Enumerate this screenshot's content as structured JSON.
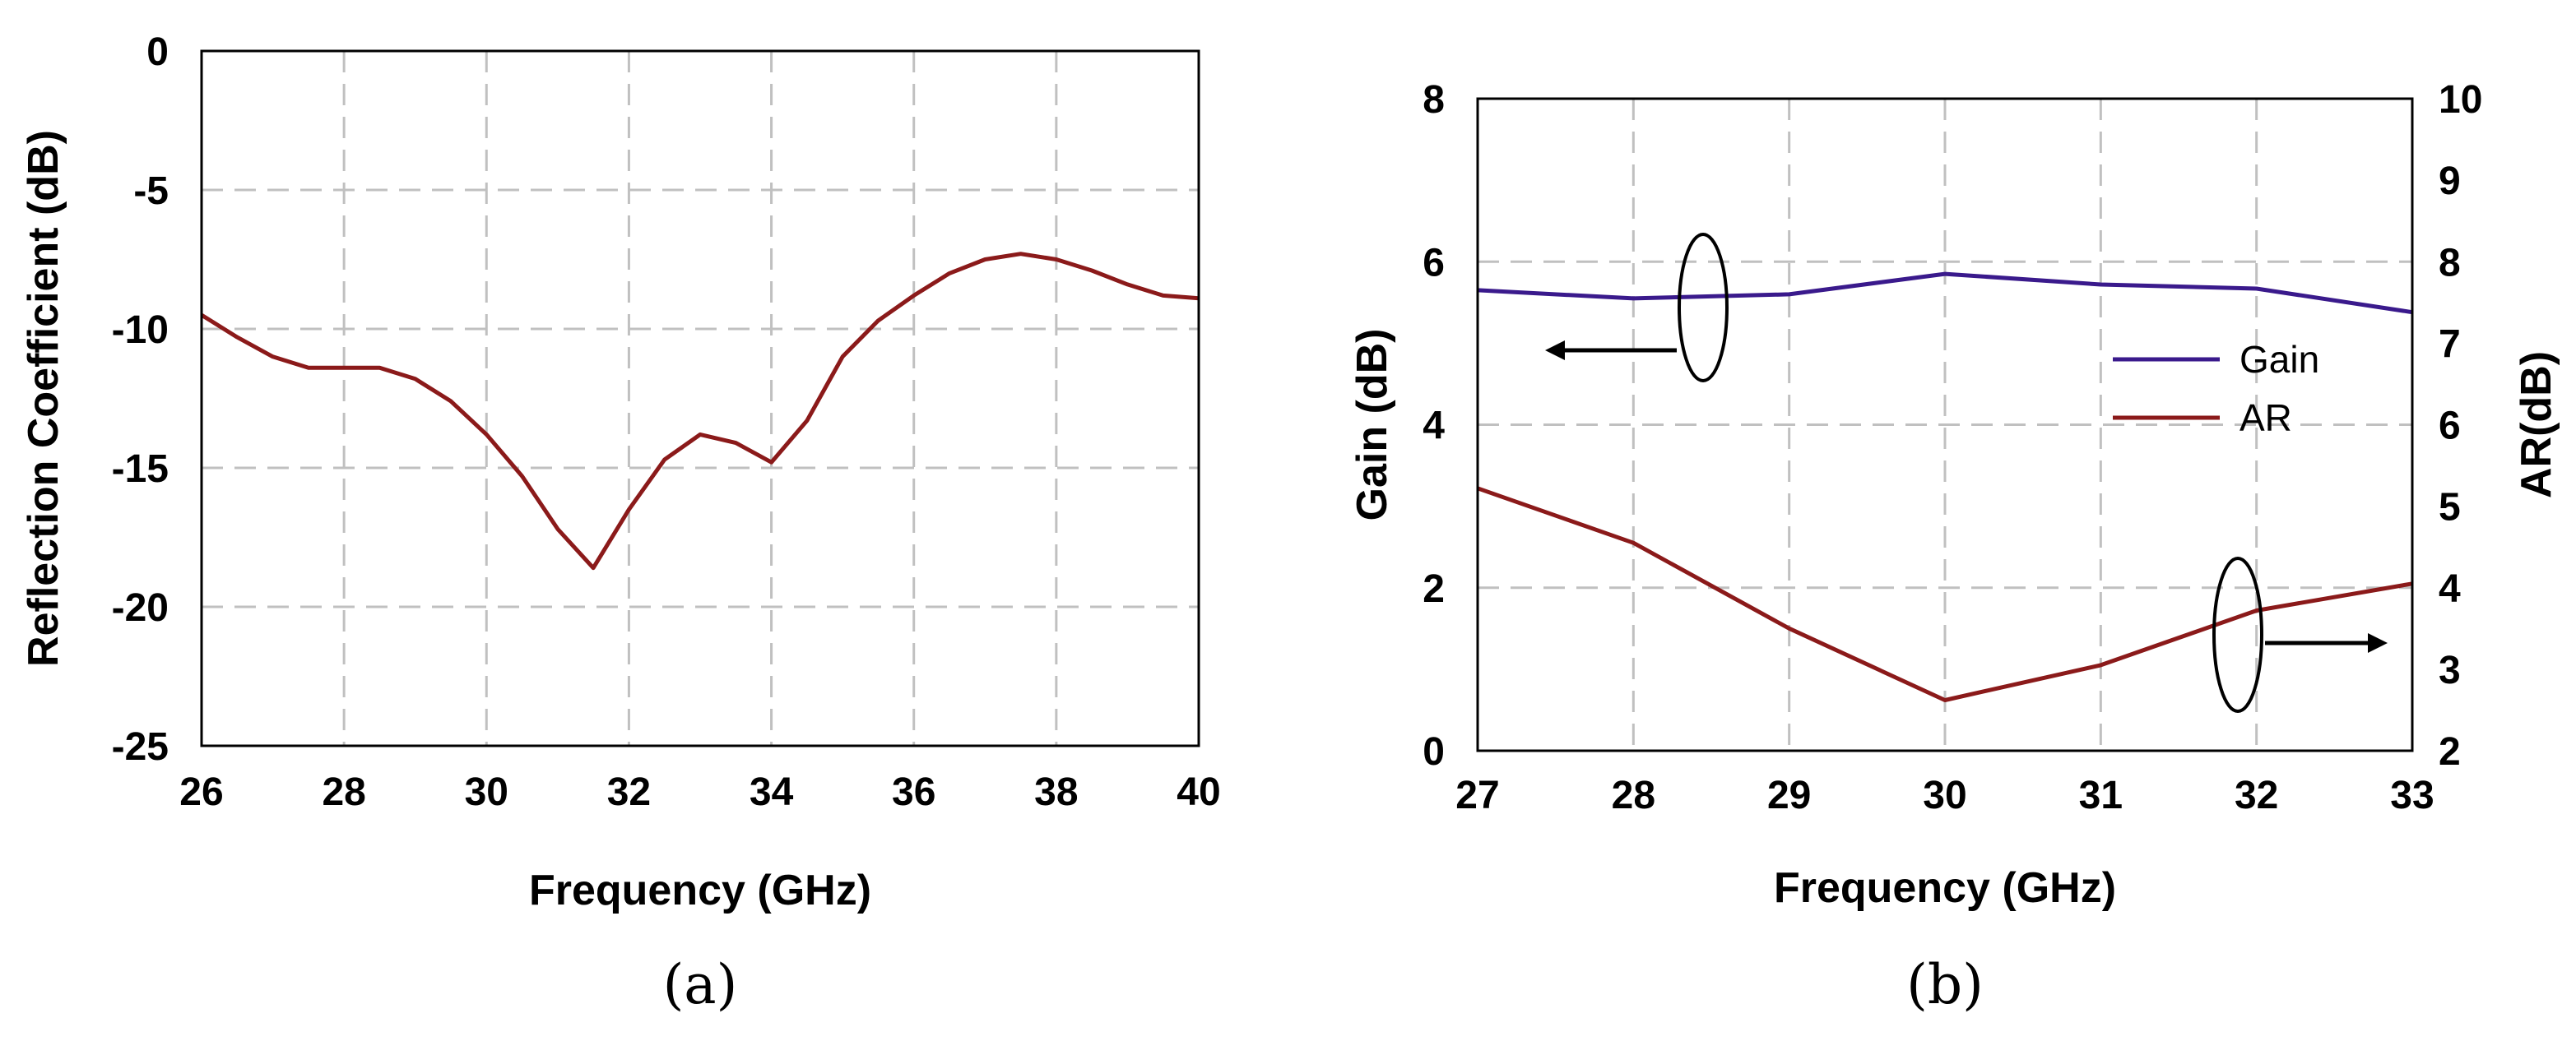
{
  "chart_data": [
    {
      "type": "line",
      "caption": "(a)",
      "xlabel": "Frequency (GHz)",
      "ylabel": "Reflection Coefficient (dB)",
      "xlim": [
        26,
        40
      ],
      "ylim": [
        -25,
        0
      ],
      "xticks": [
        26,
        28,
        30,
        32,
        34,
        36,
        38,
        40
      ],
      "yticks": [
        0,
        -5,
        -10,
        -15,
        -20,
        -25
      ],
      "grid": true,
      "colors": {
        "line": "#8b1a1a"
      },
      "series": [
        {
          "x": [
            26,
            26.5,
            27,
            27.5,
            28,
            28.5,
            29,
            29.5,
            30,
            30.5,
            31,
            31.5,
            32,
            32.5,
            33,
            33.5,
            34,
            34.5,
            35,
            35.5,
            36,
            36.5,
            37,
            37.5,
            38,
            38.5,
            39,
            39.5,
            40
          ],
          "values": [
            -9.5,
            -10.3,
            -11.0,
            -11.4,
            -11.4,
            -11.4,
            -11.8,
            -12.6,
            -13.8,
            -15.3,
            -17.2,
            -18.6,
            -16.5,
            -14.7,
            -13.8,
            -14.1,
            -14.8,
            -13.3,
            -11.0,
            -9.7,
            -8.8,
            -8.0,
            -7.5,
            -7.3,
            -7.5,
            -7.9,
            -8.4,
            -8.8,
            -8.9
          ]
        }
      ]
    },
    {
      "type": "line",
      "caption": "(b)",
      "xlabel": "Frequency (GHz)",
      "ylabel": "Gain (dB)",
      "y2label": "AR(dB)",
      "xlim": [
        27,
        33
      ],
      "ylim": [
        0,
        8
      ],
      "y2lim": [
        2,
        10
      ],
      "xticks": [
        27,
        28,
        29,
        30,
        31,
        32,
        33
      ],
      "yticks": [
        0,
        2,
        4,
        6,
        8
      ],
      "y2ticks": [
        2,
        3,
        4,
        5,
        6,
        7,
        8,
        9,
        10
      ],
      "grid": true,
      "legend_position": "right",
      "series": [
        {
          "name": "Gain",
          "axis": "left",
          "color": "#3a1a8c",
          "x": [
            27,
            28,
            29,
            30,
            31,
            32,
            33
          ],
          "values": [
            5.65,
            5.55,
            5.6,
            5.85,
            5.72,
            5.67,
            5.38
          ]
        },
        {
          "name": "AR",
          "axis": "right",
          "color": "#8b1a1a",
          "x": [
            27,
            28,
            29,
            30,
            31,
            32,
            33
          ],
          "values": [
            5.22,
            4.55,
            3.5,
            2.62,
            3.05,
            3.72,
            4.05
          ]
        }
      ]
    }
  ]
}
